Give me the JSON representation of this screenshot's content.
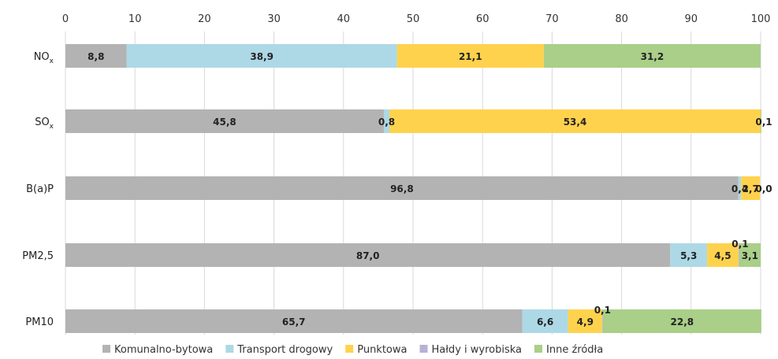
{
  "chart_data": {
    "type": "bar",
    "orientation": "horizontal",
    "stacked": true,
    "xlim": [
      0,
      100
    ],
    "x_ticks": [
      "0",
      "10",
      "20",
      "30",
      "40",
      "50",
      "60",
      "70",
      "80",
      "90",
      "100"
    ],
    "x_axis_position": "top",
    "grid": true,
    "legend_position": "bottom",
    "categories": [
      {
        "label": "NO",
        "sub": "x"
      },
      {
        "label": "SO",
        "sub": "x"
      },
      {
        "label": "B(a)P",
        "sub": ""
      },
      {
        "label": "PM2,5",
        "sub": ""
      },
      {
        "label": "PM10",
        "sub": ""
      }
    ],
    "series": [
      {
        "name": "Komunalno-bytowa",
        "color": "#b3b3b3",
        "values": [
          8.8,
          45.8,
          96.8,
          87.0,
          65.7
        ],
        "labels": [
          "8,8",
          "45,8",
          "96,8",
          "87,0",
          "65,7"
        ]
      },
      {
        "name": "Transport drogowy",
        "color": "#add8e6",
        "values": [
          38.9,
          0.8,
          0.4,
          5.3,
          6.6
        ],
        "labels": [
          "38,9",
          "0,8",
          "0,4",
          "5,3",
          "6,6"
        ]
      },
      {
        "name": "Punktowa",
        "color": "#ffd24d",
        "values": [
          21.1,
          53.4,
          2.7,
          4.5,
          4.9
        ],
        "labels": [
          "21,1",
          "53,4",
          "2,7",
          "4,5",
          "4,9"
        ]
      },
      {
        "name": "Hałdy i wyrobiska",
        "color": "#b7b1d6",
        "values": [
          0,
          0,
          0,
          0.1,
          0.1
        ],
        "labels": [
          "",
          "",
          "",
          "0,1",
          "0,1"
        ]
      },
      {
        "name": "Inne źródła",
        "color": "#a9cf88",
        "values": [
          31.2,
          0.1,
          0.0,
          3.1,
          22.8
        ],
        "labels": [
          "31,2",
          "0,1",
          "0,0",
          "3,1",
          "22,8"
        ]
      }
    ]
  }
}
